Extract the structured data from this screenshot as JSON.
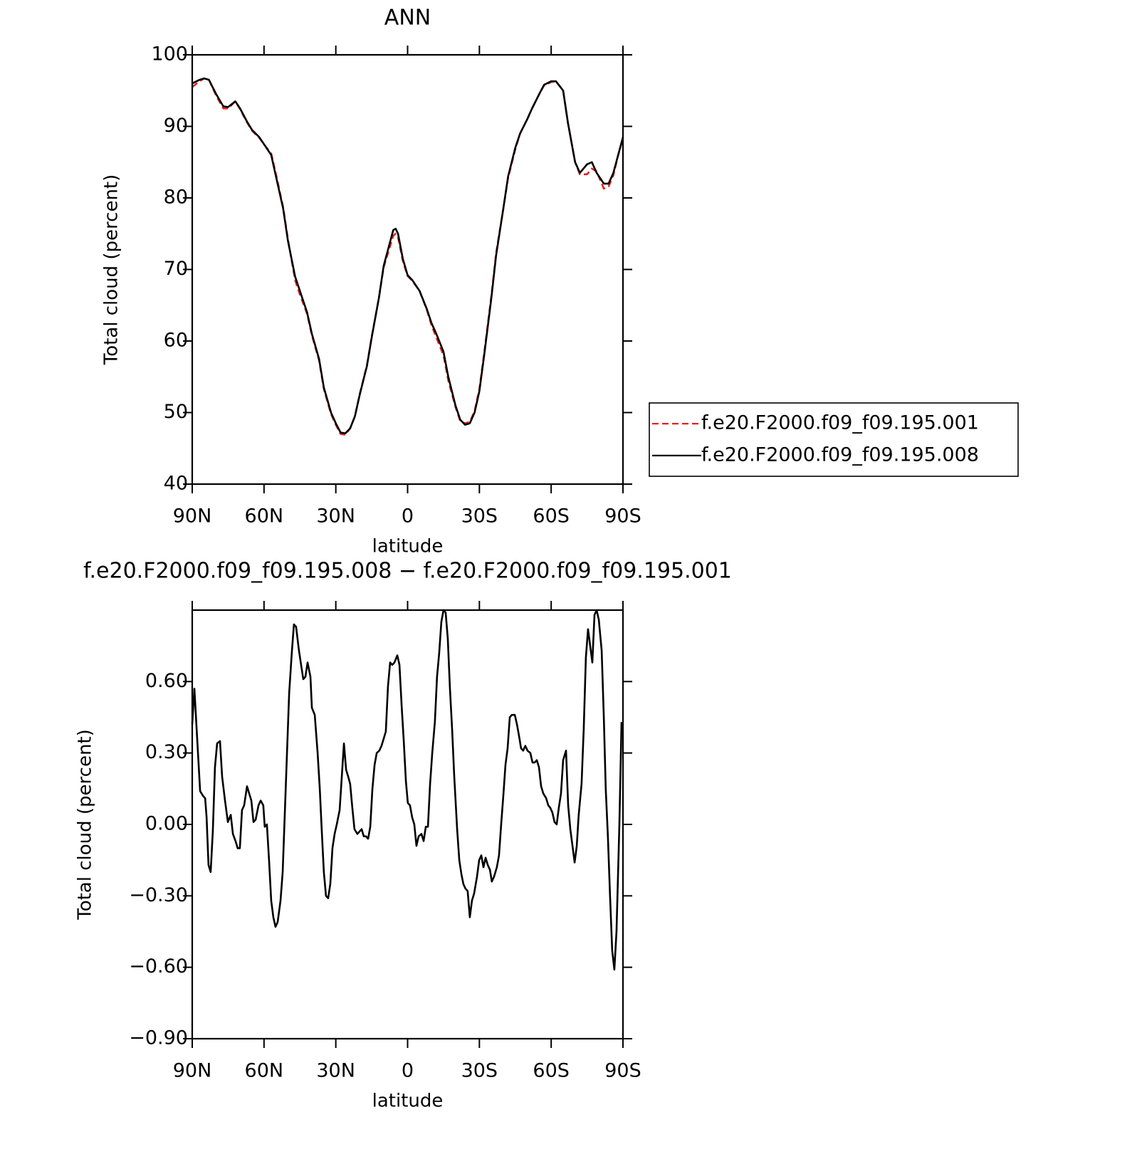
{
  "chart_data": [
    {
      "type": "line",
      "title": "ANN",
      "x_label": "latitude",
      "y_label": "Total cloud (percent)",
      "x": [
        90,
        87,
        85,
        83,
        80,
        77,
        75,
        72,
        70,
        67,
        65,
        62,
        60,
        57,
        55,
        52,
        50,
        47,
        45,
        42,
        40,
        37,
        35,
        32,
        30,
        28,
        26,
        24,
        22,
        20,
        17,
        15,
        12,
        10,
        8,
        6,
        5,
        4,
        2,
        0,
        -2,
        -5,
        -8,
        -10,
        -12,
        -15,
        -17,
        -20,
        -22,
        -24,
        -26,
        -28,
        -30,
        -32,
        -35,
        -37,
        -40,
        -42,
        -45,
        -47,
        -50,
        -52,
        -55,
        -57,
        -60,
        -62,
        -65,
        -67,
        -70,
        -72,
        -75,
        -77,
        -79,
        -82,
        -84,
        -86,
        -88,
        -90
      ],
      "series": [
        {
          "name": "f.e20.F2000.f09_f09.195.001",
          "color": "#e8201e",
          "linestyle": "dashed",
          "values": [
            95.5,
            96.3,
            96.7,
            96.5,
            94.3,
            92.5,
            92.5,
            93.5,
            92.4,
            90.5,
            89.4,
            88.4,
            87.5,
            86.2,
            83.3,
            78.7,
            74.2,
            68.5,
            66.5,
            63.8,
            60.8,
            57.3,
            53.3,
            49.8,
            48.3,
            47.0,
            46.9,
            47.8,
            49.5,
            52.6,
            56.6,
            60.6,
            66,
            70.3,
            72.5,
            74.7,
            75.0,
            74.5,
            71.2,
            69.1,
            68.4,
            67,
            64.4,
            62.2,
            60.5,
            58.0,
            54.5,
            50.8,
            48.8,
            48.5,
            48.7,
            50.2,
            53.3,
            58.3,
            66.3,
            72.3,
            78.5,
            82.8,
            86.8,
            89,
            91,
            92.5,
            94.5,
            95.7,
            96.2,
            96.3,
            95,
            90.5,
            85,
            83.3,
            83.3,
            84.1,
            83.7,
            81.3,
            81.6,
            83.2,
            86,
            88.3
          ]
        },
        {
          "name": "f.e20.F2000.f09_f09.195.008",
          "color": "#000000",
          "linestyle": "solid",
          "values": [
            96,
            96.5,
            96.7,
            96.5,
            94.5,
            92.8,
            92.7,
            93.5,
            92.5,
            90.6,
            89.5,
            88.5,
            87.5,
            86,
            83,
            78.5,
            74,
            69,
            67,
            64,
            61,
            57.5,
            53.5,
            50,
            48.5,
            47.2,
            47.1,
            47.8,
            49.5,
            52.5,
            56.5,
            60.5,
            66,
            70.5,
            73,
            75.5,
            75.7,
            75,
            71.5,
            69.2,
            68.5,
            67,
            64.5,
            62.5,
            61,
            58.5,
            55,
            51,
            49,
            48.3,
            48.5,
            50,
            53,
            58,
            66,
            72,
            78.5,
            83,
            87,
            89,
            91,
            92.5,
            94.5,
            95.8,
            96.3,
            96.3,
            95,
            90.5,
            85,
            83.5,
            84.7,
            85,
            83.5,
            82,
            82,
            83.5,
            86,
            88.5
          ]
        }
      ],
      "xlim": [
        90,
        -90
      ],
      "xticks": [
        {
          "value": 90,
          "label": "90N"
        },
        {
          "value": 60,
          "label": "60N"
        },
        {
          "value": 30,
          "label": "30N"
        },
        0,
        {
          "value": -30,
          "label": "30S"
        },
        {
          "value": -60,
          "label": "60S"
        },
        {
          "value": -90,
          "label": "90S"
        }
      ],
      "ylim": [
        40,
        100
      ],
      "yticks": [
        40,
        50,
        60,
        70,
        80,
        90,
        100
      ],
      "grid": false,
      "legend": "right"
    },
    {
      "type": "line",
      "title": "f.e20.F2000.f09_f09.195.008 − f.e20.F2000.f09_f09.195.001",
      "x_label": "latitude",
      "y_label": "Total cloud (percent)",
      "x": [
        90.0,
        89.1,
        87.6,
        86.7,
        85.5,
        84.6,
        84.0,
        83.2,
        82.3,
        81.4,
        80.5,
        79.6,
        78.4,
        77.5,
        76.3,
        75.1,
        73.9,
        73.0,
        71.9,
        71.0,
        70.1,
        69.2,
        68.3,
        67.1,
        66.2,
        65.3,
        64.4,
        63.5,
        62.3,
        61.4,
        60.3,
        59.7,
        58.8,
        57.9,
        57.0,
        56.1,
        55.2,
        54.3,
        53.1,
        52.2,
        51.3,
        50.4,
        49.5,
        48.4,
        47.5,
        46.6,
        45.4,
        44.5,
        43.6,
        42.7,
        41.8,
        40.6,
        40.0,
        38.8,
        37.6,
        36.7,
        35.9,
        35.0,
        34.1,
        33.2,
        32.3,
        31.4,
        30.5,
        29.6,
        28.4,
        27.5,
        26.6,
        25.7,
        24.8,
        24.0,
        23.1,
        22.2,
        21.0,
        20.1,
        19.2,
        18.3,
        17.4,
        16.5,
        15.6,
        14.7,
        13.8,
        12.9,
        11.8,
        10.9,
        10.0,
        9.1,
        8.2,
        7.3,
        6.4,
        5.5,
        4.3,
        3.4,
        2.5,
        1.6,
        0.7,
        -0.1,
        -1.0,
        -1.9,
        -2.8,
        -3.7,
        -4.6,
        -5.8,
        -6.7,
        -7.6,
        -8.5,
        -9.4,
        -10.3,
        -11.4,
        -12.3,
        -13.2,
        -14.1,
        -15.0,
        -15.9,
        -16.8,
        -17.7,
        -18.6,
        -19.5,
        -20.7,
        -21.6,
        -22.5,
        -23.3,
        -24.2,
        -25.1,
        -26.0,
        -26.9,
        -27.8,
        -29.0,
        -29.9,
        -30.8,
        -31.7,
        -32.6,
        -33.5,
        -34.4,
        -35.2,
        -36.1,
        -37.3,
        -38.2,
        -39.1,
        -40.0,
        -40.9,
        -41.8,
        -42.7,
        -43.6,
        -44.8,
        -45.7,
        -46.6,
        -47.4,
        -48.3,
        -49.2,
        -50.1,
        -51.3,
        -52.2,
        -53.1,
        -54.0,
        -54.9,
        -55.8,
        -56.7,
        -57.9,
        -58.8,
        -59.6,
        -60.5,
        -61.4,
        -62.3,
        -63.2,
        -64.1,
        -65.0,
        -66.2,
        -67.1,
        -68.0,
        -68.9,
        -69.8,
        -70.7,
        -71.5,
        -72.7,
        -73.6,
        -74.5,
        -75.4,
        -76.3,
        -77.2,
        -78.1,
        -79.0,
        -79.9,
        -81.1,
        -82.0,
        -82.8,
        -83.7,
        -84.6,
        -85.5,
        -86.4,
        -87.3,
        -88.5,
        -89.4
      ],
      "series": [
        {
          "color": "#000000",
          "linestyle": "solid",
          "values": [
            0.42,
            0.57,
            0.3,
            0.14,
            0.12,
            0.11,
            0.03,
            -0.17,
            -0.2,
            -0.03,
            0.24,
            0.34,
            0.35,
            0.2,
            0.1,
            0.01,
            0.04,
            -0.04,
            -0.07,
            -0.1,
            -0.1,
            0.06,
            0.08,
            0.16,
            0.13,
            0.1,
            0.01,
            0.02,
            0.08,
            0.1,
            0.08,
            -0.01,
            0.0,
            -0.15,
            -0.32,
            -0.39,
            -0.43,
            -0.41,
            -0.32,
            -0.2,
            0.05,
            0.3,
            0.55,
            0.72,
            0.84,
            0.83,
            0.73,
            0.67,
            0.61,
            0.62,
            0.68,
            0.62,
            0.49,
            0.46,
            0.3,
            0.15,
            -0.02,
            -0.2,
            -0.3,
            -0.31,
            -0.25,
            -0.1,
            -0.04,
            0.0,
            0.06,
            0.2,
            0.34,
            0.23,
            0.2,
            0.17,
            0.07,
            -0.02,
            -0.04,
            -0.03,
            -0.02,
            -0.05,
            -0.05,
            -0.06,
            -0.01,
            0.15,
            0.25,
            0.3,
            0.31,
            0.33,
            0.36,
            0.39,
            0.58,
            0.68,
            0.67,
            0.68,
            0.71,
            0.67,
            0.5,
            0.35,
            0.18,
            0.09,
            0.08,
            0.03,
            0.0,
            -0.09,
            -0.05,
            -0.04,
            -0.07,
            -0.01,
            -0.01,
            0.17,
            0.3,
            0.43,
            0.62,
            0.72,
            0.85,
            0.9,
            0.89,
            0.78,
            0.57,
            0.4,
            0.2,
            -0.02,
            -0.15,
            -0.21,
            -0.25,
            -0.27,
            -0.28,
            -0.39,
            -0.32,
            -0.29,
            -0.22,
            -0.15,
            -0.13,
            -0.18,
            -0.14,
            -0.17,
            -0.19,
            -0.24,
            -0.22,
            -0.18,
            -0.13,
            0.0,
            0.12,
            0.25,
            0.32,
            0.45,
            0.46,
            0.46,
            0.42,
            0.37,
            0.32,
            0.31,
            0.33,
            0.31,
            0.3,
            0.26,
            0.26,
            0.27,
            0.24,
            0.16,
            0.13,
            0.11,
            0.08,
            0.07,
            0.05,
            0.01,
            0.0,
            0.07,
            0.13,
            0.27,
            0.31,
            0.08,
            -0.02,
            -0.09,
            -0.16,
            -0.09,
            0.04,
            0.17,
            0.4,
            0.7,
            0.82,
            0.75,
            0.68,
            0.88,
            0.9,
            0.86,
            0.73,
            0.45,
            0.15,
            -0.05,
            -0.3,
            -0.53,
            -0.61,
            -0.45,
            0.0,
            0.43
          ]
        }
      ],
      "xlim": [
        90,
        -90
      ],
      "xticks": [
        {
          "value": 90,
          "label": "90N"
        },
        {
          "value": 60,
          "label": "60N"
        },
        {
          "value": 30,
          "label": "30N"
        },
        0,
        {
          "value": -30,
          "label": "30S"
        },
        {
          "value": -60,
          "label": "60S"
        },
        {
          "value": -90,
          "label": "90S"
        }
      ],
      "ylim": [
        -0.9,
        0.9
      ],
      "yticks": [
        {
          "value": -0.9,
          "label": "−0.90"
        },
        {
          "value": -0.6,
          "label": "−0.60"
        },
        {
          "value": -0.3,
          "label": "−0.30"
        },
        {
          "value": 0,
          "label": "0.00"
        },
        {
          "value": 0.3,
          "label": "0.30"
        },
        {
          "value": 0.6,
          "label": "0.60"
        }
      ],
      "grid": false
    }
  ]
}
